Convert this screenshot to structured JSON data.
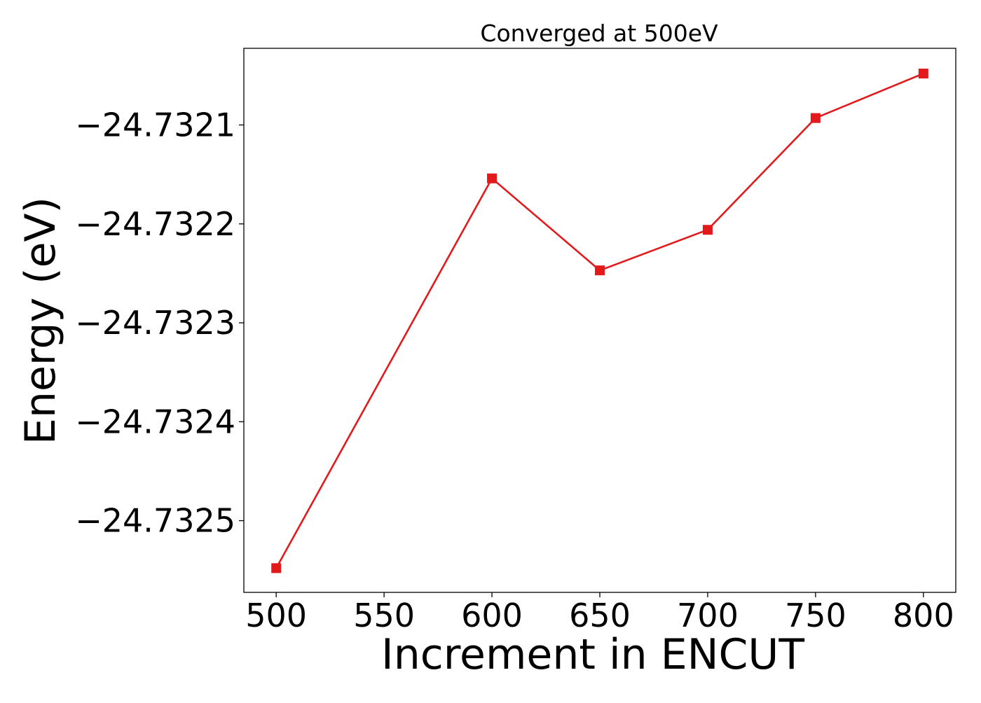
{
  "chart_data": {
    "type": "line",
    "title": "Converged at 500eV",
    "xlabel": "Increment in ENCUT",
    "ylabel": "Energy (eV)",
    "x": [
      500,
      600,
      650,
      700,
      750,
      800
    ],
    "series": [
      {
        "values": [
          -24.732548,
          -24.732154,
          -24.732247,
          -24.732206,
          -24.732093,
          -24.732048
        ],
        "color": "#e31a1c",
        "marker": "square"
      }
    ],
    "xticks": [
      500,
      550,
      600,
      650,
      700,
      750,
      800
    ],
    "xtick_labels": [
      "500",
      "550",
      "600",
      "650",
      "700",
      "750",
      "800"
    ],
    "yticks": [
      -24.7325,
      -24.7324,
      -24.7323,
      -24.7322,
      -24.7321
    ],
    "ytick_labels": [
      "−24.7325",
      "−24.7324",
      "−24.7323",
      "−24.7322",
      "−24.7321"
    ],
    "xlim": [
      485,
      815
    ],
    "ylim": [
      -24.7325725,
      -24.7320225
    ],
    "grid": false,
    "legend": "none"
  }
}
